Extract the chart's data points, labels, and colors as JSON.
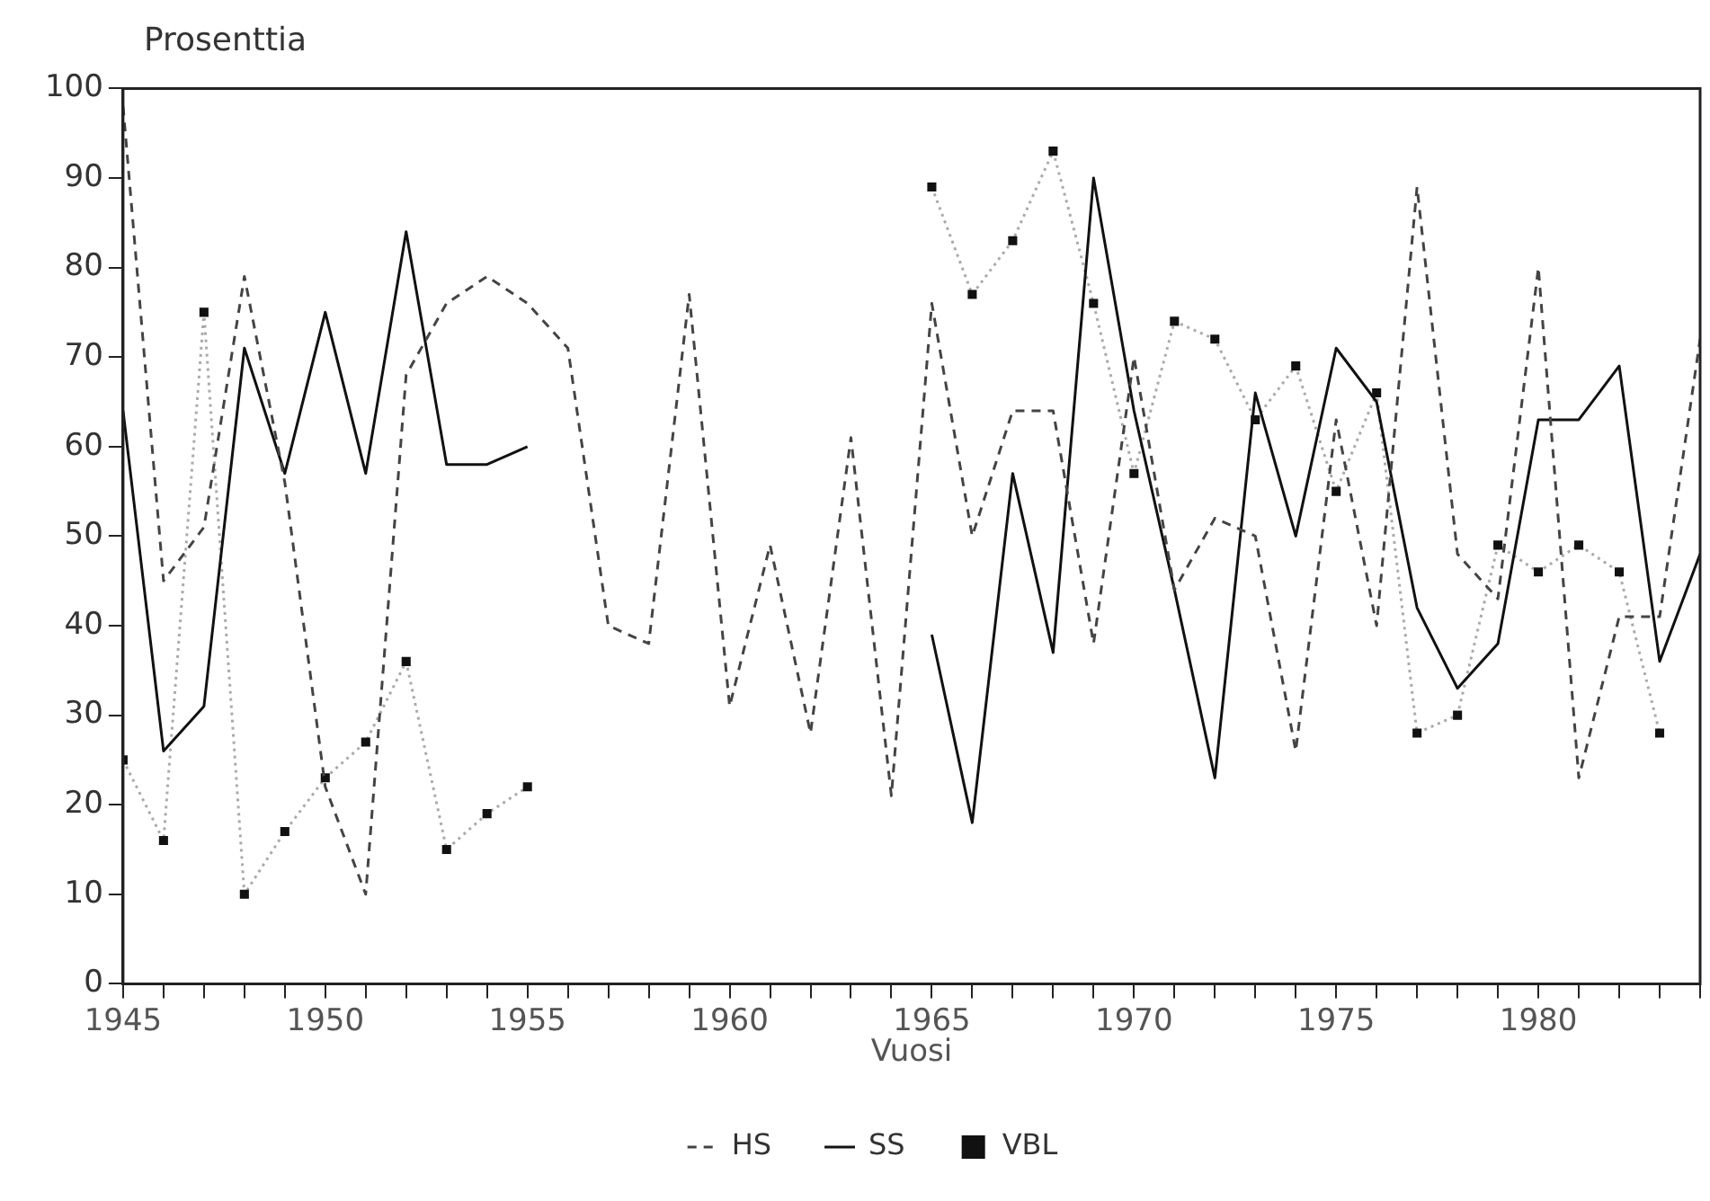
{
  "chart_data": {
    "type": "line",
    "ylabel": "Prosenttia",
    "xlabel": "Vuosi",
    "x": [
      1945,
      1946,
      1947,
      1948,
      1949,
      1950,
      1951,
      1952,
      1953,
      1954,
      1955,
      1956,
      1957,
      1958,
      1959,
      1960,
      1961,
      1962,
      1963,
      1964,
      1965,
      1966,
      1967,
      1968,
      1969,
      1970,
      1971,
      1972,
      1973,
      1974,
      1975,
      1976,
      1977,
      1978,
      1979,
      1980,
      1981,
      1982,
      1983,
      1984
    ],
    "series": [
      {
        "name": "HS",
        "color": "#444444",
        "line_style": "dashed",
        "marker": "none",
        "values": [
          98,
          45,
          51,
          79,
          56,
          22,
          10,
          68,
          76,
          79,
          76,
          71,
          40,
          38,
          77,
          31,
          49,
          28,
          61,
          21,
          76,
          50,
          64,
          64,
          38,
          70,
          44,
          52,
          50,
          26,
          63,
          40,
          89,
          48,
          43,
          80,
          23,
          41,
          41,
          72
        ]
      },
      {
        "name": "SS",
        "color": "#111111",
        "line_style": "solid",
        "marker": "none",
        "values": [
          64,
          26,
          31,
          71,
          57,
          75,
          57,
          84,
          58,
          58,
          60,
          null,
          null,
          null,
          null,
          null,
          null,
          null,
          null,
          null,
          39,
          18,
          57,
          37,
          90,
          64,
          44,
          23,
          66,
          50,
          71,
          65,
          42,
          33,
          38,
          63,
          63,
          69,
          36,
          48
        ]
      },
      {
        "name": "VBL",
        "color": "#aaaaaa",
        "line_style": "dotted",
        "marker": "square",
        "values": [
          25,
          16,
          75,
          10,
          17,
          23,
          27,
          36,
          15,
          19,
          22,
          null,
          null,
          null,
          null,
          null,
          null,
          null,
          null,
          null,
          89,
          77,
          83,
          93,
          76,
          57,
          74,
          72,
          63,
          69,
          55,
          66,
          28,
          30,
          49,
          46,
          49,
          46,
          28,
          null
        ]
      }
    ],
    "xlim": [
      1945,
      1984
    ],
    "xticks": [
      1945,
      {
        "value": 1946,
        "label": null
      },
      {
        "value": 1947,
        "label": null
      },
      {
        "value": 1948,
        "label": null
      },
      {
        "value": 1949,
        "label": null
      },
      1950,
      {
        "value": 1951,
        "label": null
      },
      {
        "value": 1952,
        "label": null
      },
      {
        "value": 1953,
        "label": null
      },
      {
        "value": 1954,
        "label": null
      },
      1955,
      {
        "value": 1956,
        "label": null
      },
      {
        "value": 1957,
        "label": null
      },
      {
        "value": 1958,
        "label": null
      },
      {
        "value": 1959,
        "label": null
      },
      1960,
      {
        "value": 1961,
        "label": null
      },
      {
        "value": 1962,
        "label": null
      },
      {
        "value": 1963,
        "label": null
      },
      {
        "value": 1964,
        "label": null
      },
      1965,
      {
        "value": 1966,
        "label": null
      },
      {
        "value": 1967,
        "label": null
      },
      {
        "value": 1968,
        "label": null
      },
      {
        "value": 1969,
        "label": null
      },
      1970,
      {
        "value": 1971,
        "label": null
      },
      {
        "value": 1972,
        "label": null
      },
      {
        "value": 1973,
        "label": null
      },
      {
        "value": 1974,
        "label": null
      },
      1975,
      {
        "value": 1976,
        "label": null
      },
      {
        "value": 1977,
        "label": null
      },
      {
        "value": 1978,
        "label": null
      },
      {
        "value": 1979,
        "label": null
      },
      1980,
      {
        "value": 1981,
        "label": null
      },
      {
        "value": 1982,
        "label": null
      },
      {
        "value": 1983,
        "label": null
      },
      {
        "value": 1984,
        "label": null
      }
    ],
    "ylim": [
      0,
      100
    ],
    "yticks": [
      0,
      10,
      20,
      30,
      40,
      50,
      60,
      70,
      80,
      90,
      100
    ],
    "grid": false,
    "legend": "bottom"
  }
}
